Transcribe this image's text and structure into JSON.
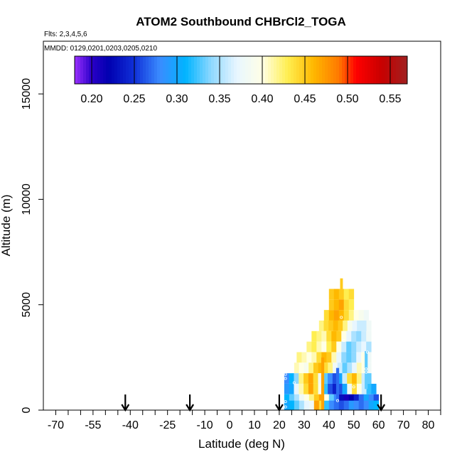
{
  "chart_data": {
    "type": "heatmap",
    "title": "ATOM2 Southbound CHBrCl2_TOGA",
    "flights_note": "Flts: 2,3,4,5,6",
    "mmdd_note": "MMDD: 0129,0201,0203,0205,0210",
    "xlabel": "Latitude (deg N)",
    "ylabel": "Altitude (m)",
    "xlim": [
      -75,
      85
    ],
    "ylim": [
      0,
      17500
    ],
    "x_ticks": [
      -70,
      -55,
      -40,
      -25,
      -10,
      0,
      10,
      20,
      30,
      40,
      50,
      60,
      70,
      80
    ],
    "x_tick_labels": [
      "-70",
      "-55",
      "-40",
      "-25",
      "-10",
      "0",
      "10",
      "20",
      "30",
      "40",
      "50",
      "60",
      "70",
      "80"
    ],
    "x_minor_ticks": [
      -65,
      -60,
      -50,
      -45,
      -35,
      -30,
      -20,
      -15,
      -5,
      5,
      15,
      25,
      35,
      45,
      55,
      65,
      75,
      85
    ],
    "y_ticks": [
      0,
      5000,
      10000,
      15000
    ],
    "y_tick_labels": [
      "0",
      "5000",
      "10000",
      "15000"
    ],
    "colorbar": {
      "min": 0.18,
      "max": 0.57,
      "ticks": [
        0.2,
        0.25,
        0.3,
        0.35,
        0.4,
        0.45,
        0.5,
        0.55
      ],
      "tick_labels": [
        "0.20",
        "0.25",
        "0.30",
        "0.35",
        "0.40",
        "0.45",
        "0.50",
        "0.55"
      ],
      "color_stops": [
        {
          "v": 0.18,
          "c": "#9b30ff"
        },
        {
          "v": 0.2,
          "c": "#2a00c8"
        },
        {
          "v": 0.22,
          "c": "#0000b0"
        },
        {
          "v": 0.25,
          "c": "#1030d8"
        },
        {
          "v": 0.28,
          "c": "#3a8cff"
        },
        {
          "v": 0.31,
          "c": "#00b4ff"
        },
        {
          "v": 0.34,
          "c": "#8ed8ff"
        },
        {
          "v": 0.37,
          "c": "#e8f6ff"
        },
        {
          "v": 0.4,
          "c": "#ffffe6"
        },
        {
          "v": 0.43,
          "c": "#ffee50"
        },
        {
          "v": 0.46,
          "c": "#ffb800"
        },
        {
          "v": 0.49,
          "c": "#ff7800"
        },
        {
          "v": 0.51,
          "c": "#ff0000"
        },
        {
          "v": 0.54,
          "c": "#c80000"
        },
        {
          "v": 0.57,
          "c": "#a02020"
        }
      ]
    },
    "arrows_lat": [
      -42,
      -16,
      20,
      61
    ],
    "curtain": {
      "levels": [
        {
          "alt": 6000,
          "lat0": 44.5,
          "lat1": 45.5,
          "vals": [
            0.45
          ]
        },
        {
          "alt": 5500,
          "lat0": 40,
          "lat1": 50,
          "vals": [
            0.45,
            0.46,
            0.45,
            0.43,
            0.44
          ]
        },
        {
          "alt": 5000,
          "lat0": 40,
          "lat1": 50,
          "vals": [
            0.45,
            0.46,
            0.47,
            0.44,
            0.43
          ]
        },
        {
          "alt": 4500,
          "lat0": 38,
          "lat1": 56,
          "vals": [
            0.44,
            0.46,
            0.47,
            0.46,
            0.44,
            0.42,
            0.4,
            0.39,
            0.38
          ]
        },
        {
          "alt": 4000,
          "lat0": 36,
          "lat1": 57,
          "vals": [
            0.42,
            0.44,
            0.45,
            0.46,
            0.45,
            0.42,
            0.39,
            0.37,
            0.36,
            0.36,
            0.38
          ]
        },
        {
          "alt": 3500,
          "lat0": 33,
          "lat1": 57,
          "vals": [
            0.43,
            0.42,
            0.41,
            0.44,
            0.46,
            0.45,
            0.4,
            0.37,
            0.35,
            0.34,
            0.36,
            0.38
          ]
        },
        {
          "alt": 3000,
          "lat0": 31,
          "lat1": 57,
          "vals": [
            0.42,
            0.43,
            0.41,
            0.4,
            0.43,
            0.45,
            0.4,
            0.36,
            0.33,
            0.34,
            0.36,
            0.37,
            0.35
          ]
        },
        {
          "alt": 2500,
          "lat0": 27,
          "lat1": 57,
          "vals": [
            0.42,
            0.41,
            0.4,
            0.41,
            0.44,
            0.46,
            0.45,
            0.41,
            0.37,
            0.34,
            0.33,
            0.34,
            0.37,
            0.4,
            0.38
          ]
        },
        {
          "alt": 2000,
          "lat0": 26,
          "lat1": 57,
          "vals": [
            0.41,
            0.4,
            0.39,
            0.42,
            0.45,
            0.46,
            0.44,
            0.42,
            0.38,
            0.36,
            0.33,
            0.35,
            0.37,
            0.41,
            0.4,
            0.38
          ]
        },
        {
          "alt": 1500,
          "lat0": 22,
          "lat1": 57,
          "vals": [
            0.28,
            0.31,
            0.34,
            0.42,
            0.45,
            0.47,
            0.44,
            0.38,
            0.33,
            0.28,
            0.26,
            0.3,
            0.36,
            0.44,
            0.46,
            0.42,
            0.36,
            0.33
          ]
        },
        {
          "alt": 1000,
          "lat0": 22,
          "lat1": 59,
          "vals": [
            0.29,
            0.3,
            0.37,
            0.41,
            0.44,
            0.47,
            0.44,
            0.39,
            0.32,
            0.26,
            0.24,
            0.26,
            0.3,
            0.38,
            0.44,
            0.4,
            0.36,
            0.32,
            0.3
          ]
        },
        {
          "alt": 500,
          "lat0": 22,
          "lat1": 60,
          "vals": [
            0.31,
            0.33,
            0.35,
            0.38,
            0.4,
            0.42,
            0.45,
            0.47,
            0.4,
            0.33,
            0.28,
            0.23,
            0.21,
            0.22,
            0.24,
            0.27,
            0.3,
            0.28,
            0.26
          ]
        },
        {
          "alt": 0,
          "lat0": 22,
          "lat1": 60,
          "vals": [
            0.3,
            0.31,
            0.33,
            0.35,
            0.37,
            0.38,
            0.47,
            0.44,
            0.32,
            0.28,
            0.27,
            0.26,
            0.27,
            0.29,
            0.28,
            0.27,
            0.28,
            0.3,
            0.31
          ]
        }
      ],
      "vertical_bars": [
        {
          "lat": 37.5,
          "alt0": 0,
          "alt1": 2500,
          "val": 0.47
        },
        {
          "lat": 43.5,
          "alt0": 500,
          "alt1": 2000,
          "val": 0.27
        },
        {
          "lat": 55.0,
          "alt0": 1000,
          "alt1": 2800,
          "val": 0.33
        }
      ],
      "sample_points": [
        {
          "lat": 22.5,
          "alt": 1700
        },
        {
          "lat": 22.5,
          "alt": 1500
        },
        {
          "lat": 26,
          "alt": 1300
        },
        {
          "lat": 22.5,
          "alt": 400
        },
        {
          "lat": 22.5,
          "alt": 150
        },
        {
          "lat": 43.5,
          "alt": 450
        },
        {
          "lat": 50,
          "alt": 1100
        },
        {
          "lat": 55,
          "alt": 1800
        },
        {
          "lat": 55,
          "alt": 1950
        },
        {
          "lat": 55.5,
          "alt": 2750
        },
        {
          "lat": 45,
          "alt": 4400
        },
        {
          "lat": 46,
          "alt": 3300
        }
      ]
    }
  }
}
